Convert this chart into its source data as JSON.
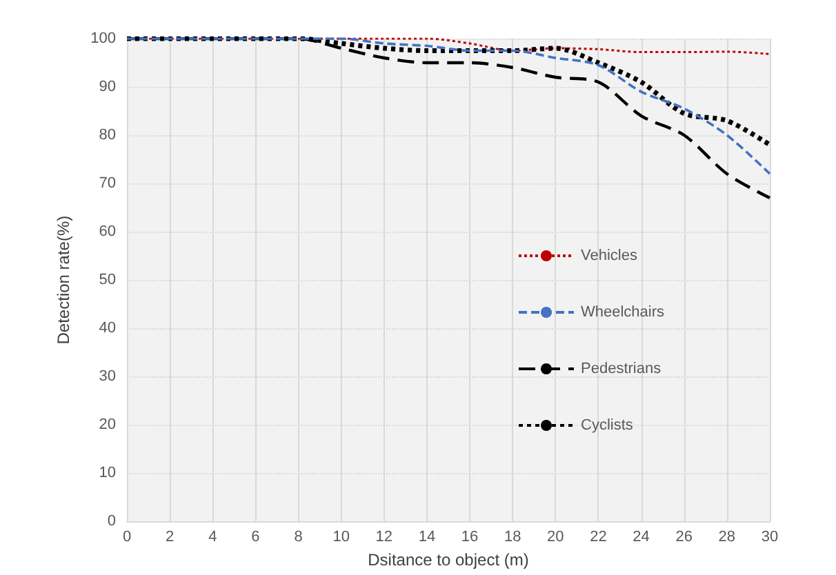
{
  "chart_data": {
    "type": "line",
    "xlabel": "Dsitance to object (m)",
    "ylabel": "Detection rate(%)",
    "x": [
      0,
      2,
      4,
      6,
      8,
      10,
      12,
      14,
      16,
      18,
      20,
      22,
      24,
      26,
      28,
      30
    ],
    "series": [
      {
        "name": "Vehicles",
        "color": "#c00000",
        "line_style": "dotted",
        "values": [
          100,
          100,
          100,
          100,
          100,
          100,
          100,
          100,
          99,
          97.5,
          98,
          97.8,
          97.2,
          97.2,
          97.3,
          96.8
        ]
      },
      {
        "name": "Wheelchairs",
        "color": "#4472c4",
        "line_style": "dashed",
        "values": [
          100,
          100,
          100,
          100,
          100,
          100,
          99,
          98.5,
          97.5,
          97.5,
          96,
          94.5,
          89,
          85.5,
          80,
          72
        ]
      },
      {
        "name": "Pedestrians",
        "color": "#000000",
        "line_style": "dashed",
        "values": [
          100,
          100,
          100,
          100,
          100,
          98,
          96,
          95,
          95,
          94,
          92,
          91,
          84,
          80,
          72,
          67
        ]
      },
      {
        "name": "Cyclists",
        "color": "#000000",
        "line_style": "dotted",
        "values": [
          100,
          100,
          100,
          100,
          100,
          99,
          98,
          97.5,
          97.5,
          97.5,
          98,
          95,
          91,
          84.5,
          83,
          78
        ]
      }
    ],
    "xlim": [
      0,
      30
    ],
    "xticks": [
      0,
      2,
      4,
      6,
      8,
      10,
      12,
      14,
      16,
      18,
      20,
      22,
      24,
      26,
      28,
      30
    ],
    "ylim": [
      0,
      100
    ],
    "yticks": [
      0,
      10,
      20,
      30,
      40,
      50,
      60,
      70,
      80,
      90,
      100
    ],
    "grid": true,
    "legend": "right",
    "marker": "none"
  }
}
